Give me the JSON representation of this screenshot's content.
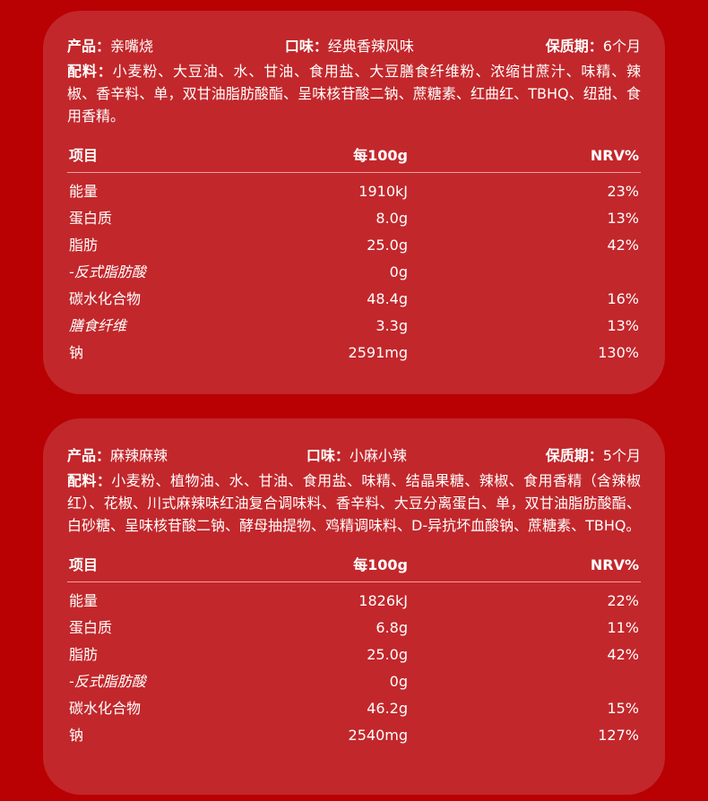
{
  "labels": {
    "product": "产品：",
    "flavor": "口味：",
    "shelf_life": "保质期：",
    "ingredients": "配料："
  },
  "table_header": {
    "item": "项目",
    "per100g": "每100g",
    "nrv": "NRV%"
  },
  "products": [
    {
      "product": "亲嘴烧",
      "flavor": "经典香辣风味",
      "shelf_life": "6个月",
      "ingredients": "小麦粉、大豆油、水、甘油、食用盐、大豆膳食纤维粉、浓缩甘蔗汁、味精、辣椒、香辛料、单，双甘油脂肪酸酯、呈味核苷酸二钠、蔗糖素、红曲红、TBHQ、纽甜、食用香精。",
      "rows": [
        {
          "item": "能量",
          "value": "1910kJ",
          "nrv": "23%"
        },
        {
          "item": "蛋白质",
          "value": "8.0g",
          "nrv": "13%"
        },
        {
          "item": "脂肪",
          "value": "25.0g",
          "nrv": "42%"
        },
        {
          "item": "-反式脂肪酸",
          "value": "0g",
          "nrv": "",
          "italic": true
        },
        {
          "item": "碳水化合物",
          "value": "48.4g",
          "nrv": "16%"
        },
        {
          "item": "膳食纤维",
          "value": "3.3g",
          "nrv": "13%",
          "italic": true
        },
        {
          "item": "钠",
          "value": "2591mg",
          "nrv": "130%"
        }
      ]
    },
    {
      "product": "麻辣麻辣",
      "flavor": "小麻小辣",
      "shelf_life": "5个月",
      "ingredients": "小麦粉、植物油、水、甘油、食用盐、味精、结晶果糖、辣椒、食用香精（含辣椒红）、花椒、川式麻辣味红油复合调味料、香辛料、大豆分离蛋白、单，双甘油脂肪酸酯、白砂糖、呈味核苷酸二钠、酵母抽提物、鸡精调味料、D-异抗坏血酸钠、蔗糖素、TBHQ。",
      "rows": [
        {
          "item": "能量",
          "value": "1826kJ",
          "nrv": "22%"
        },
        {
          "item": "蛋白质",
          "value": "6.8g",
          "nrv": "11%"
        },
        {
          "item": "脂肪",
          "value": "25.0g",
          "nrv": "42%"
        },
        {
          "item": "-反式脂肪酸",
          "value": "0g",
          "nrv": "",
          "italic": true
        },
        {
          "item": "碳水化合物",
          "value": "46.2g",
          "nrv": "15%"
        },
        {
          "item": "钠",
          "value": "2540mg",
          "nrv": "127%"
        }
      ]
    }
  ],
  "colors": {
    "background": "#b90003",
    "card": "#c2272b",
    "divider": "#f0a0a0"
  }
}
